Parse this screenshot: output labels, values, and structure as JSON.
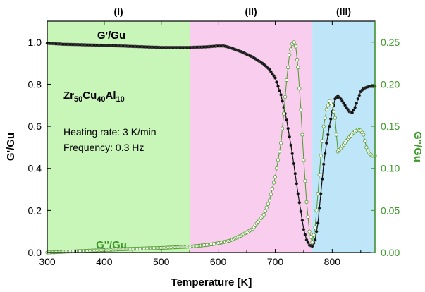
{
  "chart_data": {
    "type": "scatter",
    "xlabel": "Temperature [K]",
    "ylabel": "G'/Gu",
    "y2label": "G''/Gu",
    "xlim": [
      300,
      875
    ],
    "ylim": [
      0,
      1.1
    ],
    "y2lim": [
      0,
      0.275
    ],
    "x_ticks": [
      "300",
      "400",
      "500",
      "600",
      "700",
      "800"
    ],
    "y_ticks": [
      "0.0",
      "0.2",
      "0.4",
      "0.6",
      "0.8",
      "1.0"
    ],
    "y2_ticks": [
      "0.00",
      "0.05",
      "0.10",
      "0.15",
      "0.20",
      "0.25"
    ],
    "regions": [
      {
        "label": "(I)",
        "x_start": 300,
        "x_end": 550,
        "color": "#c8f5b8"
      },
      {
        "label": "(II)",
        "x_start": 550,
        "x_end": 765,
        "color": "#f8cdee"
      },
      {
        "label": "(III)",
        "x_start": 765,
        "x_end": 875,
        "color": "#bfe6f8"
      }
    ],
    "series": [
      {
        "name": "G'/Gu",
        "axis": "left",
        "color": "#111111",
        "x": [
          300,
          330,
          360,
          400,
          450,
          500,
          550,
          580,
          600,
          610,
          620,
          640,
          660,
          680,
          690,
          700,
          710,
          720,
          730,
          740,
          750,
          755,
          760,
          765,
          770,
          775,
          780,
          785,
          790,
          795,
          800,
          805,
          810,
          815,
          820,
          825,
          830,
          835,
          840,
          845,
          850,
          855,
          860,
          865,
          870,
          875
        ],
        "y": [
          0.995,
          0.99,
          0.988,
          0.985,
          0.98,
          0.975,
          0.975,
          0.978,
          0.982,
          0.982,
          0.975,
          0.955,
          0.93,
          0.895,
          0.87,
          0.83,
          0.75,
          0.63,
          0.47,
          0.28,
          0.11,
          0.06,
          0.035,
          0.03,
          0.06,
          0.14,
          0.28,
          0.42,
          0.52,
          0.6,
          0.67,
          0.73,
          0.745,
          0.73,
          0.71,
          0.69,
          0.67,
          0.665,
          0.69,
          0.73,
          0.765,
          0.78,
          0.785,
          0.79,
          0.79,
          0.79
        ]
      },
      {
        "name": "G''/Gu",
        "axis": "right",
        "color": "#4f9a2c",
        "x": [
          300,
          350,
          400,
          450,
          500,
          550,
          580,
          600,
          620,
          640,
          660,
          680,
          690,
          700,
          710,
          715,
          720,
          725,
          730,
          733,
          736,
          740,
          745,
          750,
          755,
          760,
          765,
          770,
          775,
          780,
          785,
          790,
          795,
          800,
          805,
          810,
          815,
          820,
          825,
          830,
          835,
          840,
          845,
          850,
          855,
          860,
          865,
          870,
          875
        ],
        "y": [
          0.0,
          0.0015,
          0.003,
          0.0045,
          0.0055,
          0.007,
          0.009,
          0.011,
          0.014,
          0.02,
          0.028,
          0.045,
          0.062,
          0.09,
          0.13,
          0.165,
          0.205,
          0.235,
          0.248,
          0.25,
          0.245,
          0.22,
          0.17,
          0.11,
          0.06,
          0.025,
          0.012,
          0.03,
          0.07,
          0.115,
          0.15,
          0.17,
          0.18,
          0.175,
          0.16,
          0.12,
          0.124,
          0.128,
          0.133,
          0.137,
          0.141,
          0.144,
          0.146,
          0.145,
          0.14,
          0.125,
          0.118,
          0.115,
          0.115
        ]
      }
    ],
    "annotations": {
      "gprime_label": "G'/Gu",
      "gdouble_label": "G''/Gu",
      "alloy": {
        "el1": "Zr",
        "n1": "50",
        "el2": "Cu",
        "n2": "40",
        "el3": "Al",
        "n3": "10"
      },
      "heating_rate": "Heating rate: 3 K/min",
      "frequency": "Frequency: 0.3 Hz"
    },
    "colors": {
      "left_axis": "#000000",
      "right_axis": "#3d9a2b",
      "gprime_marker": "#111111",
      "gdouble_marker": "#4f9a2c"
    },
    "grid": false,
    "legend": "none"
  }
}
